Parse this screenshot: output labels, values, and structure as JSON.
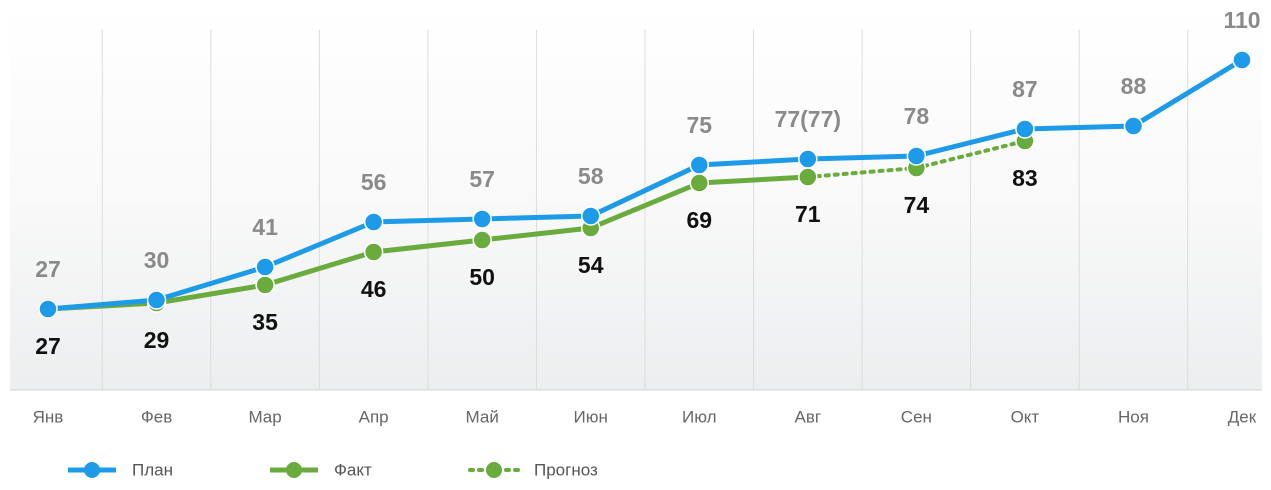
{
  "chart_data": {
    "type": "line",
    "categories": [
      "Янв",
      "Фев",
      "Мар",
      "Апр",
      "Май",
      "Июн",
      "Июл",
      "Авг",
      "Сен",
      "Окт",
      "Ноя",
      "Дек"
    ],
    "series": [
      {
        "name": "План",
        "color": "#1e9be8",
        "values": [
          27,
          30,
          41,
          56,
          57,
          58,
          75,
          77,
          78,
          87,
          88,
          110
        ],
        "value_labels": [
          "27",
          "30",
          "41",
          "56",
          "57",
          "58",
          "75",
          "77(77)",
          "78",
          "87",
          "88",
          "110"
        ]
      },
      {
        "name": "Факт",
        "color": "#6aab3e",
        "values": [
          27,
          29,
          35,
          46,
          50,
          54,
          69,
          71,
          null,
          null,
          null,
          null
        ]
      },
      {
        "name": "Прогноз",
        "color": "#6aab3e",
        "dashed": true,
        "values": [
          null,
          null,
          null,
          null,
          null,
          null,
          null,
          71,
          74,
          83,
          null,
          null
        ]
      }
    ],
    "ylim": [
      0,
      130
    ],
    "legend": "bottom-left"
  }
}
